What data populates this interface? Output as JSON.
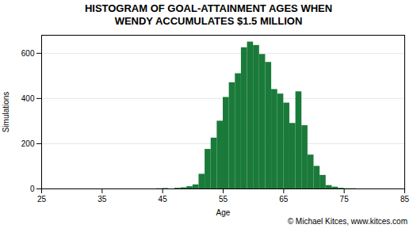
{
  "chart_data": {
    "type": "bar",
    "title": "HISTOGRAM OF GOAL-ATTAINMENT AGES WHEN\nWENDY ACCUMULATES $1.5 MILLION",
    "xlabel": "Age",
    "ylabel": "Simulations",
    "caption": "© Michael Kitces, www.kitces.com",
    "x": [
      44,
      45,
      47,
      48,
      49,
      50,
      51,
      52,
      53,
      54,
      55,
      56,
      57,
      58,
      59,
      60,
      61,
      62,
      63,
      64,
      65,
      66,
      67,
      68,
      69,
      70,
      71,
      72,
      73,
      74,
      75,
      76
    ],
    "values": [
      1,
      2,
      3,
      5,
      10,
      18,
      65,
      175,
      225,
      300,
      405,
      470,
      510,
      625,
      650,
      635,
      595,
      560,
      440,
      420,
      380,
      290,
      430,
      280,
      150,
      100,
      60,
      15,
      8,
      3,
      1,
      1
    ],
    "color": "#1a7a3a",
    "xlim": [
      25,
      85
    ],
    "ylim": [
      0,
      680
    ],
    "xticks": [
      25,
      35,
      45,
      55,
      65,
      75,
      85
    ],
    "yticks": [
      0,
      200,
      400,
      600
    ],
    "grid": true
  }
}
